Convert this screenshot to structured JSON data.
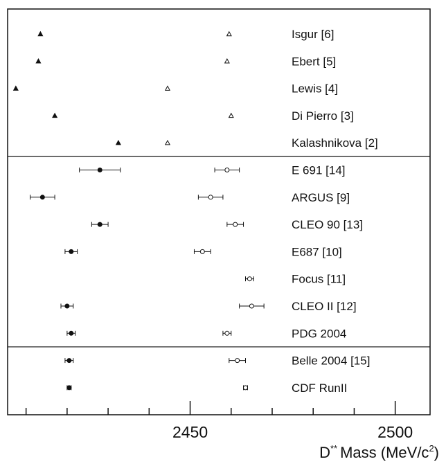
{
  "chart_data": {
    "type": "scatter",
    "xlabel": "Mass (MeV/c",
    "xlabel_prefix": "D",
    "xlabel_superscript": "**",
    "xlabel_unit_sup": "2",
    "xlabel_suffix": ")",
    "xlim": [
      2405.5,
      2508.5
    ],
    "major_ticks": [
      2450,
      2500
    ],
    "minor_ticks": [
      2410,
      2420,
      2430,
      2440,
      2460,
      2470,
      2480,
      2490
    ],
    "grid": false,
    "legend": "none",
    "sections": [
      {
        "marker": "triangle",
        "rows": [
          {
            "label": "Isgur [6]",
            "x1": 2413.5,
            "x2": 2459.5
          },
          {
            "label": "Ebert [5]",
            "x1": 2413.0,
            "x2": 2459.0
          },
          {
            "label": "Lewis [4]",
            "x1": 2407.5,
            "x2": 2444.5
          },
          {
            "label": "Di Pierro [3]",
            "x1": 2417.0,
            "x2": 2460.0
          },
          {
            "label": "Kalashnikova [2]",
            "x1": 2432.5,
            "x2": 2444.5
          }
        ]
      },
      {
        "marker": "circle",
        "rows": [
          {
            "label": "E 691 [14]",
            "x1": 2428.0,
            "e1": 5.0,
            "x2": 2459.0,
            "e2": 3.0
          },
          {
            "label": "ARGUS [9]",
            "x1": 2414.0,
            "e1": 3.0,
            "x2": 2455.0,
            "e2": 3.0
          },
          {
            "label": "CLEO 90 [13]",
            "x1": 2428.0,
            "e1": 2.0,
            "x2": 2461.0,
            "e2": 2.0
          },
          {
            "label": "E687 [10]",
            "x1": 2421.0,
            "e1": 1.5,
            "x2": 2453.0,
            "e2": 2.0
          },
          {
            "label": "Focus [11]",
            "x1": 2464.5,
            "e1": 1.0
          },
          {
            "label": "CLEO II [12]",
            "x1": 2420.0,
            "e1": 1.5,
            "x2": 2465.0,
            "e2": 3.0
          },
          {
            "label": "PDG 2004",
            "x1": 2421.0,
            "e1": 1.0,
            "x2": 2459.0,
            "e2": 1.0
          }
        ]
      },
      {
        "marker": "circle",
        "rows": [
          {
            "label": "Belle 2004 [15]",
            "x1": 2420.5,
            "e1": 1.0,
            "x2": 2461.5,
            "e2": 2.0
          },
          {
            "label": "CDF RunII",
            "x1": 2420.5,
            "e1": 0.5,
            "x2": 2463.5,
            "e2": 0.5
          }
        ]
      }
    ]
  }
}
